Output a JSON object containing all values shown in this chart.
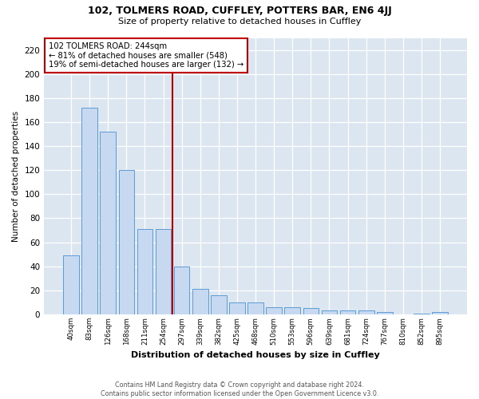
{
  "title1": "102, TOLMERS ROAD, CUFFLEY, POTTERS BAR, EN6 4JJ",
  "title2": "Size of property relative to detached houses in Cuffley",
  "xlabel": "Distribution of detached houses by size in Cuffley",
  "ylabel": "Number of detached properties",
  "footer1": "Contains HM Land Registry data © Crown copyright and database right 2024.",
  "footer2": "Contains public sector information licensed under the Open Government Licence v3.0.",
  "annotation_line1": "102 TOLMERS ROAD: 244sqm",
  "annotation_line2": "← 81% of detached houses are smaller (548)",
  "annotation_line3": "19% of semi-detached houses are larger (132) →",
  "bar_labels": [
    "40sqm",
    "83sqm",
    "126sqm",
    "168sqm",
    "211sqm",
    "254sqm",
    "297sqm",
    "339sqm",
    "382sqm",
    "425sqm",
    "468sqm",
    "510sqm",
    "553sqm",
    "596sqm",
    "639sqm",
    "681sqm",
    "724sqm",
    "767sqm",
    "810sqm",
    "852sqm",
    "895sqm"
  ],
  "bar_values": [
    49,
    172,
    152,
    120,
    71,
    71,
    40,
    21,
    16,
    10,
    10,
    6,
    6,
    5,
    3,
    3,
    3,
    2,
    0,
    1,
    2
  ],
  "bar_color": "#c6d9f0",
  "bar_edge_color": "#5b9bd5",
  "vline_color": "#c00000",
  "annotation_box_color": "#c00000",
  "plot_bg_color": "#dce6f1",
  "fig_bg_color": "#ffffff",
  "ylim": [
    0,
    230
  ],
  "yticks": [
    0,
    20,
    40,
    60,
    80,
    100,
    120,
    140,
    160,
    180,
    200,
    220
  ]
}
